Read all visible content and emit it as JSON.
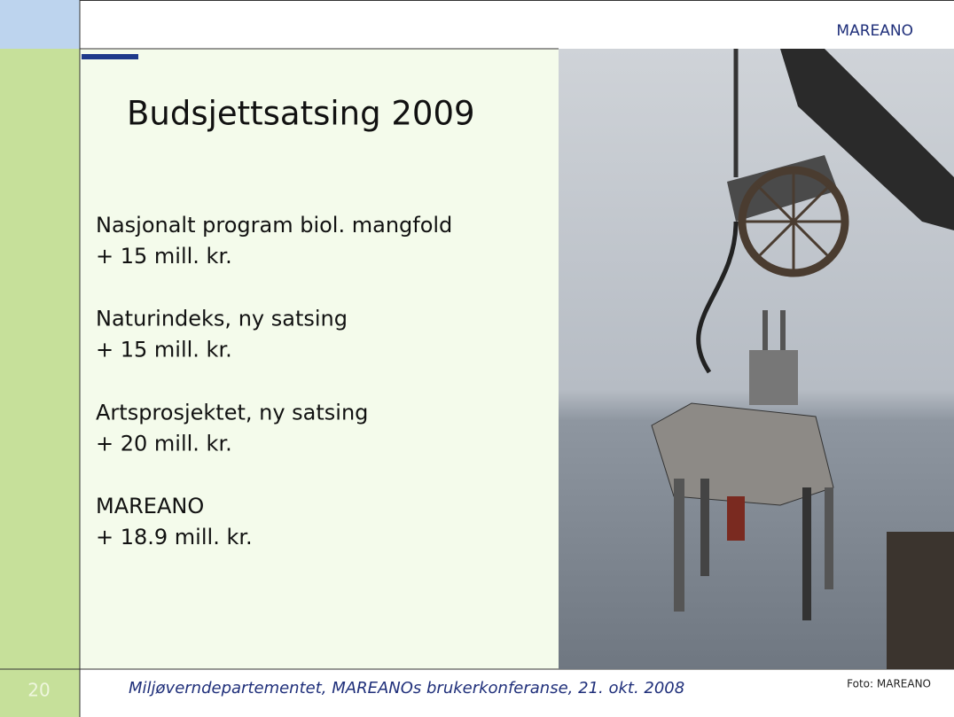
{
  "header": {
    "label": "MAREANO"
  },
  "title": "Budsjettsatsing 2009",
  "items": [
    {
      "name": "Nasjonalt program biol. mangfold",
      "amount": "+ 15 mill. kr."
    },
    {
      "name": "Naturindeks, ny satsing",
      "amount": "+ 15 mill. kr."
    },
    {
      "name": "Artsprosjektet, ny satsing",
      "amount": "+ 20 mill. kr."
    },
    {
      "name": "MAREANO",
      "amount": "+ 18.9 mill. kr."
    }
  ],
  "footer": "Miljøverndepartementet, MAREANOs brukerkonferanse, 21. okt. 2008",
  "page_number": "20",
  "photo_credit": "Foto:  MAREANO"
}
